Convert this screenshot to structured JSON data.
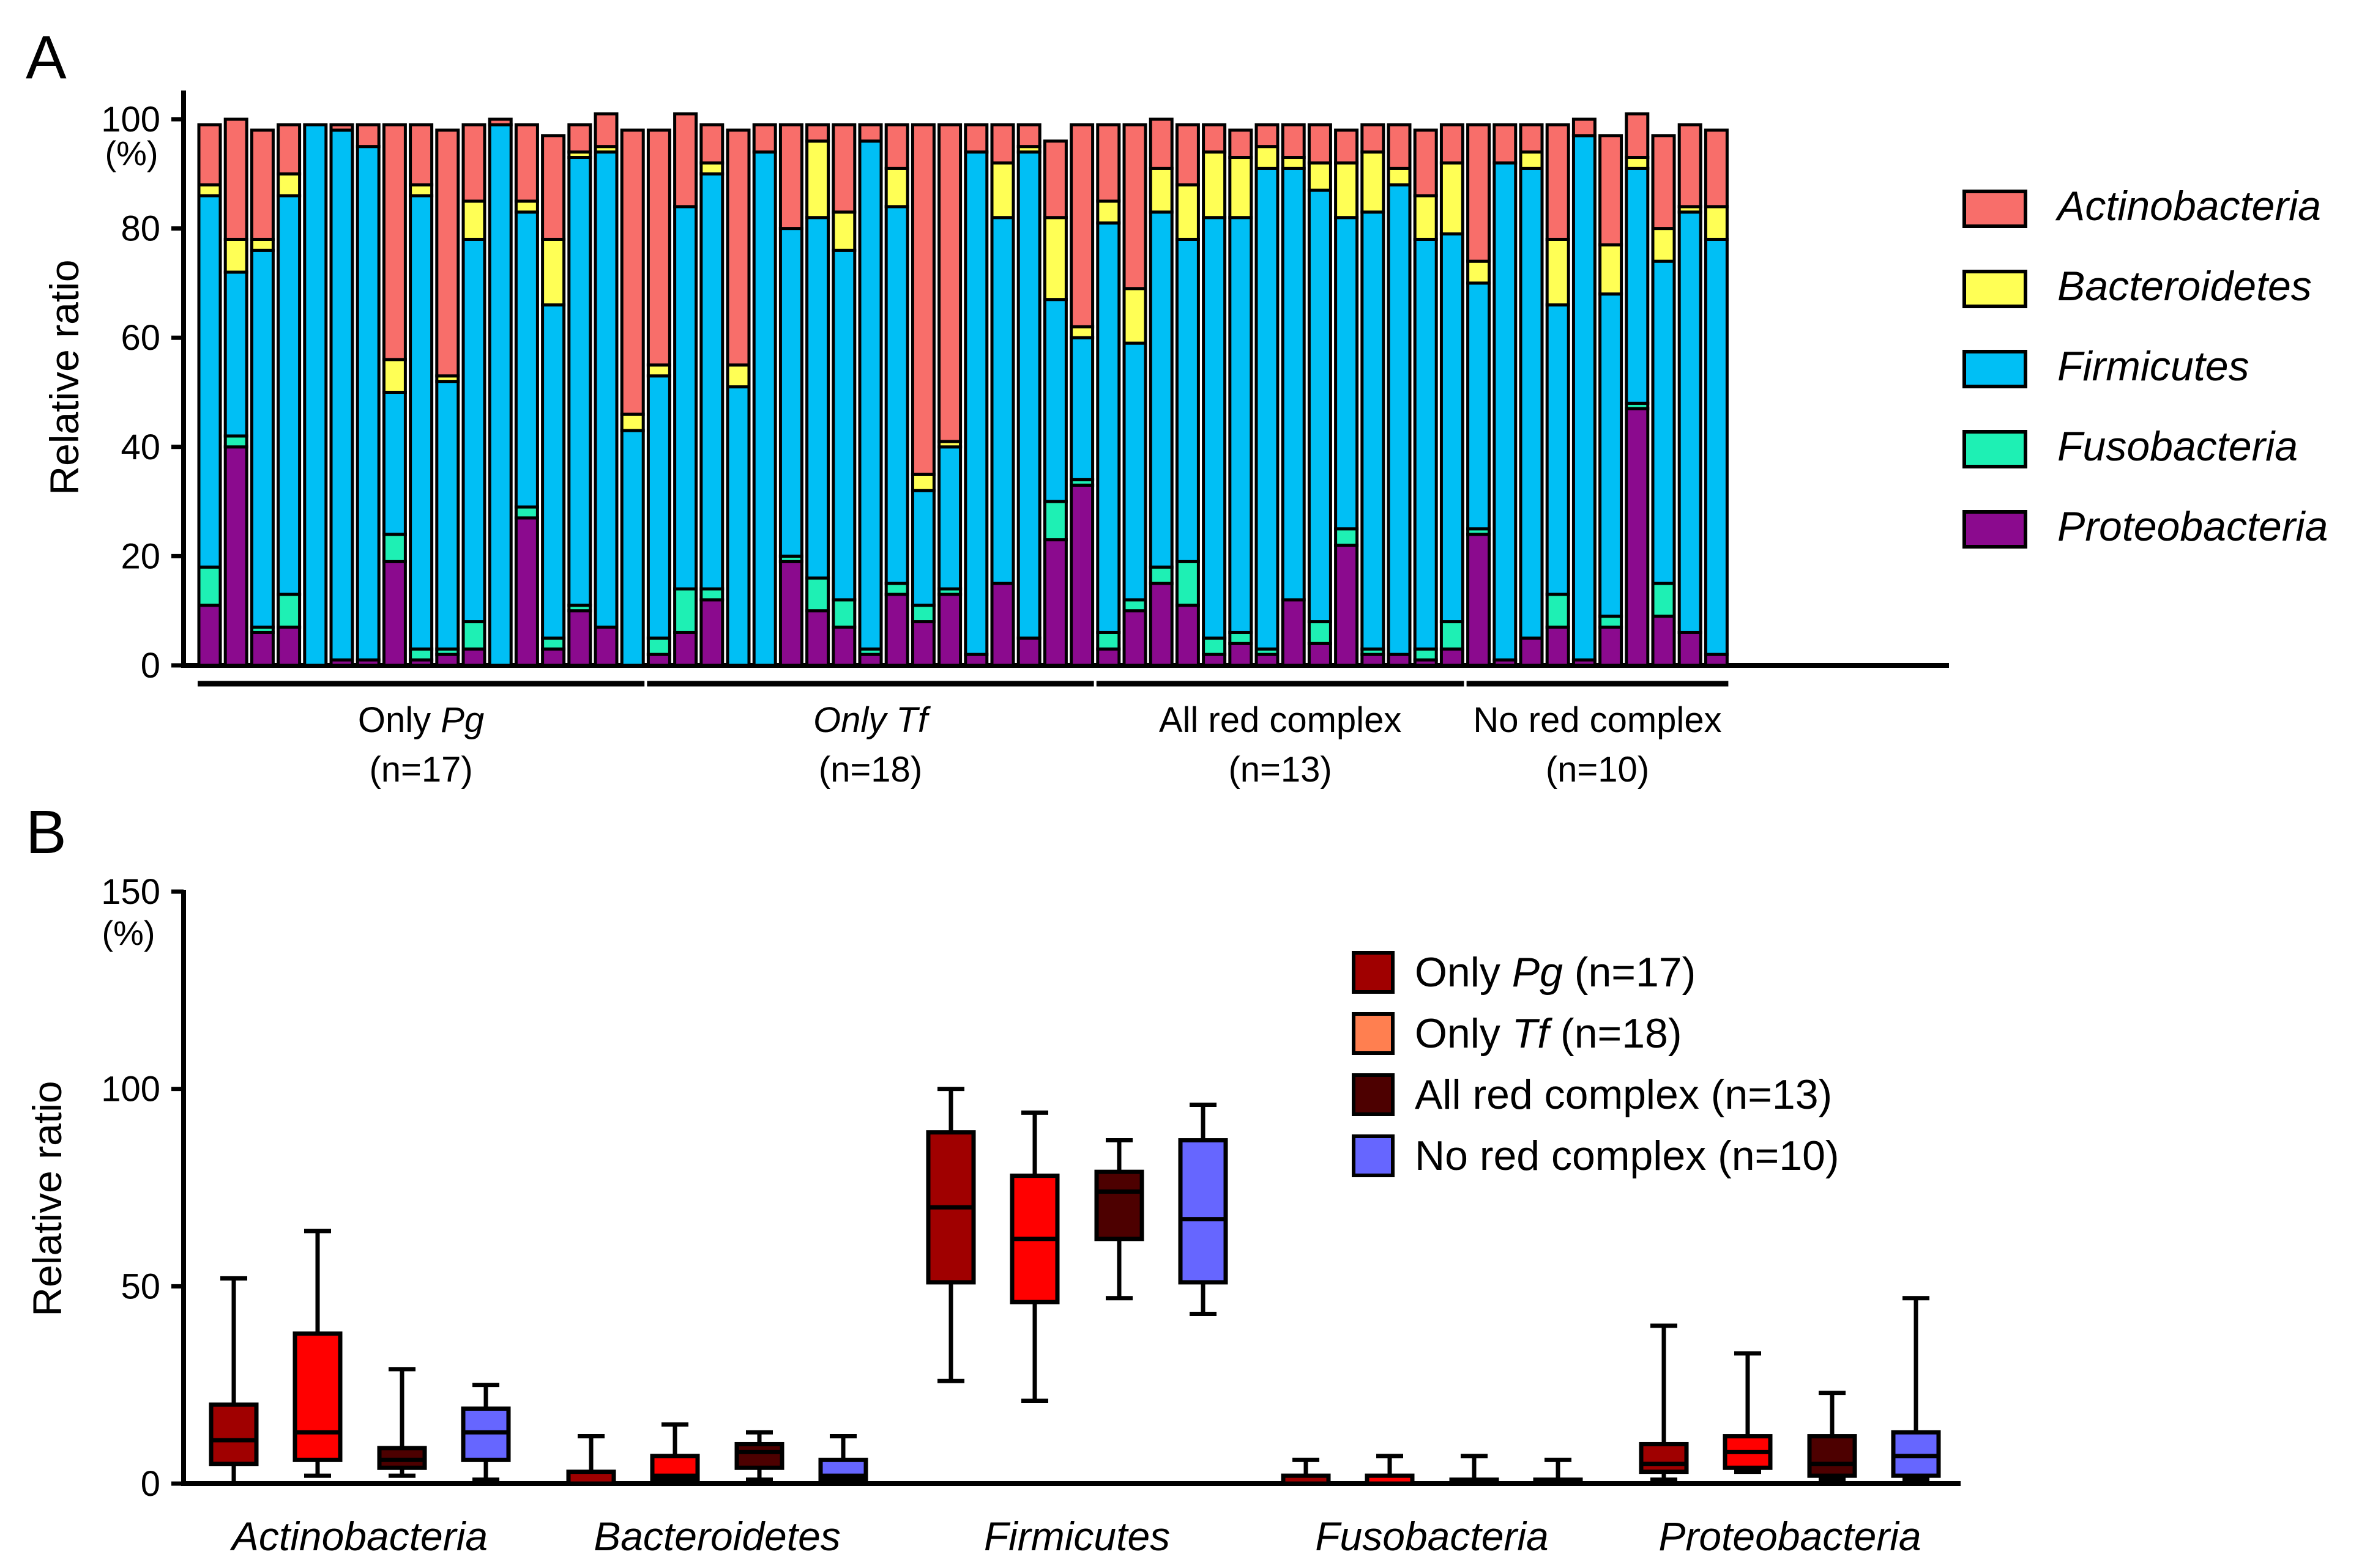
{
  "figure": {
    "panel_a_label": "A",
    "panel_b_label": "B"
  },
  "chart_data": [
    {
      "type": "bar",
      "stacked": true,
      "panel": "A",
      "ylabel": "Relative ratio",
      "yunit": "(%)",
      "ylim": [
        0,
        100
      ],
      "yticks": [
        0,
        20,
        40,
        60,
        80,
        100
      ],
      "legend_position": "right",
      "phyla": [
        "Actinobacteria",
        "Bacteroidetes",
        "Firmicutes",
        "Fusobacteria",
        "Proteobacteria"
      ],
      "colors": {
        "Proteobacteria": "#8B0A8E",
        "Fusobacteria": "#1EF0B4",
        "Firmicutes": "#00BFF5",
        "Bacteroidetes": "#FFFF55",
        "Actinobacteria": "#F86E6A"
      },
      "groups": [
        {
          "label_main": "Only ",
          "label_ital": "Pg",
          "label_n": "(n=17)",
          "italic_all": false
        },
        {
          "label_main": "",
          "label_ital": "Only Tf",
          "label_n": "(n=18)",
          "italic_all": true
        },
        {
          "label_main": "All red complex",
          "label_ital": "",
          "label_n": "(n=13)",
          "italic_all": false
        },
        {
          "label_main": "No red complex",
          "label_ital": "",
          "label_n": "(n=10)",
          "italic_all": false
        }
      ],
      "samples": [
        {
          "group": 0,
          "segments": [
            11,
            7,
            68,
            2,
            11
          ]
        },
        {
          "group": 0,
          "segments": [
            40,
            2,
            30,
            6,
            22
          ]
        },
        {
          "group": 0,
          "segments": [
            6,
            1,
            69,
            2,
            20
          ]
        },
        {
          "group": 0,
          "segments": [
            7,
            6,
            73,
            4,
            9
          ]
        },
        {
          "group": 0,
          "segments": [
            0,
            0,
            99,
            0,
            0
          ]
        },
        {
          "group": 0,
          "segments": [
            1,
            0,
            97,
            0,
            1
          ]
        },
        {
          "group": 0,
          "segments": [
            1,
            0,
            94,
            0,
            4
          ]
        },
        {
          "group": 0,
          "segments": [
            19,
            5,
            26,
            6,
            43
          ]
        },
        {
          "group": 0,
          "segments": [
            1,
            2,
            83,
            2,
            11
          ]
        },
        {
          "group": 0,
          "segments": [
            2,
            1,
            49,
            1,
            45
          ]
        },
        {
          "group": 0,
          "segments": [
            3,
            5,
            70,
            7,
            14
          ]
        },
        {
          "group": 0,
          "segments": [
            0,
            0,
            99,
            0,
            1
          ]
        },
        {
          "group": 0,
          "segments": [
            27,
            2,
            54,
            2,
            14
          ]
        },
        {
          "group": 0,
          "segments": [
            3,
            2,
            61,
            12,
            19
          ]
        },
        {
          "group": 0,
          "segments": [
            10,
            1,
            82,
            1,
            5
          ]
        },
        {
          "group": 0,
          "segments": [
            7,
            0,
            87,
            1,
            6
          ]
        },
        {
          "group": 0,
          "segments": [
            0,
            0,
            43,
            3,
            52
          ]
        },
        {
          "group": 1,
          "segments": [
            2,
            3,
            48,
            2,
            43
          ]
        },
        {
          "group": 1,
          "segments": [
            6,
            8,
            70,
            0,
            17
          ]
        },
        {
          "group": 1,
          "segments": [
            12,
            2,
            76,
            2,
            7
          ]
        },
        {
          "group": 1,
          "segments": [
            0,
            0,
            51,
            4,
            43
          ]
        },
        {
          "group": 1,
          "segments": [
            0,
            0,
            94,
            0,
            5
          ]
        },
        {
          "group": 1,
          "segments": [
            19,
            1,
            60,
            0,
            19
          ]
        },
        {
          "group": 1,
          "segments": [
            10,
            6,
            66,
            14,
            3
          ]
        },
        {
          "group": 1,
          "segments": [
            7,
            5,
            64,
            7,
            16
          ]
        },
        {
          "group": 1,
          "segments": [
            2,
            1,
            93,
            0,
            3
          ]
        },
        {
          "group": 1,
          "segments": [
            13,
            2,
            69,
            7,
            8
          ]
        },
        {
          "group": 1,
          "segments": [
            8,
            3,
            21,
            3,
            64
          ]
        },
        {
          "group": 1,
          "segments": [
            13,
            1,
            26,
            1,
            58
          ]
        },
        {
          "group": 1,
          "segments": [
            2,
            0,
            92,
            0,
            5
          ]
        },
        {
          "group": 1,
          "segments": [
            15,
            0,
            67,
            10,
            7
          ]
        },
        {
          "group": 1,
          "segments": [
            5,
            0,
            89,
            1,
            4
          ]
        },
        {
          "group": 1,
          "segments": [
            23,
            7,
            37,
            15,
            14
          ]
        },
        {
          "group": 1,
          "segments": [
            33,
            1,
            26,
            2,
            37
          ]
        },
        {
          "group": 2,
          "segments": [
            3,
            3,
            75,
            4,
            14
          ]
        },
        {
          "group": 2,
          "segments": [
            10,
            2,
            47,
            10,
            30
          ]
        },
        {
          "group": 2,
          "segments": [
            15,
            3,
            65,
            8,
            9
          ]
        },
        {
          "group": 2,
          "segments": [
            11,
            8,
            59,
            10,
            11
          ]
        },
        {
          "group": 2,
          "segments": [
            2,
            3,
            77,
            12,
            5
          ]
        },
        {
          "group": 2,
          "segments": [
            4,
            2,
            76,
            11,
            5
          ]
        },
        {
          "group": 2,
          "segments": [
            2,
            1,
            88,
            4,
            4
          ]
        },
        {
          "group": 2,
          "segments": [
            12,
            0,
            79,
            2,
            6
          ]
        },
        {
          "group": 2,
          "segments": [
            4,
            4,
            79,
            5,
            7
          ]
        },
        {
          "group": 2,
          "segments": [
            22,
            3,
            57,
            10,
            6
          ]
        },
        {
          "group": 2,
          "segments": [
            2,
            1,
            80,
            11,
            5
          ]
        },
        {
          "group": 2,
          "segments": [
            2,
            0,
            86,
            3,
            8
          ]
        },
        {
          "group": 2,
          "segments": [
            1,
            2,
            75,
            8,
            12
          ]
        },
        {
          "group": 2,
          "segments": [
            3,
            5,
            71,
            13,
            7
          ]
        },
        {
          "group": 3,
          "segments": [
            24,
            1,
            45,
            4,
            25
          ]
        },
        {
          "group": 3,
          "segments": [
            1,
            0,
            91,
            0,
            7
          ]
        },
        {
          "group": 3,
          "segments": [
            5,
            0,
            86,
            3,
            5
          ]
        },
        {
          "group": 3,
          "segments": [
            7,
            6,
            53,
            12,
            21
          ]
        },
        {
          "group": 3,
          "segments": [
            1,
            0,
            96,
            0,
            3
          ]
        },
        {
          "group": 3,
          "segments": [
            7,
            2,
            59,
            9,
            20
          ]
        },
        {
          "group": 3,
          "segments": [
            47,
            1,
            43,
            2,
            8
          ]
        },
        {
          "group": 3,
          "segments": [
            9,
            6,
            59,
            6,
            17
          ]
        },
        {
          "group": 3,
          "segments": [
            6,
            0,
            77,
            1,
            15
          ]
        },
        {
          "group": 3,
          "segments": [
            2,
            0,
            76,
            6,
            14
          ]
        }
      ]
    },
    {
      "type": "boxplot",
      "panel": "B",
      "ylabel": "Relative ratio",
      "yunit": "(%)",
      "ylim": [
        0,
        150
      ],
      "yticks": [
        0,
        50,
        100,
        150
      ],
      "legend_position": "top-right",
      "categories": [
        "Actinobacteria",
        "Bacteroidetes",
        "Firmicutes",
        "Fusobacteria",
        "Proteobacteria"
      ],
      "series": [
        {
          "name_main": "Only ",
          "name_ital": "Pg",
          "name_tail": " (n=17)",
          "legend_color": "#A00000",
          "box_color": "#A00000",
          "stats": [
            [
              0,
              5,
              11,
              20,
              52
            ],
            [
              0,
              0,
              0,
              3,
              12
            ],
            [
              26,
              51,
              70,
              89,
              100
            ],
            [
              0,
              0,
              0,
              2,
              6
            ],
            [
              1,
              3,
              5,
              10,
              40
            ]
          ]
        },
        {
          "name_main": "Only ",
          "name_ital": "Tf",
          "name_tail": " (n=18)",
          "legend_color": "#FF7F50",
          "box_color": "#FF0000",
          "stats": [
            [
              2,
              6,
              13,
              38,
              64
            ],
            [
              0,
              1,
              2,
              7,
              15
            ],
            [
              21,
              46,
              62,
              78,
              94
            ],
            [
              0,
              0,
              0,
              2,
              7
            ],
            [
              3,
              4,
              8,
              12,
              33
            ]
          ]
        },
        {
          "name_main": "All red complex (n=13)",
          "name_ital": "",
          "name_tail": "",
          "legend_color": "#4D0000",
          "box_color": "#4D0000",
          "stats": [
            [
              2,
              4,
              6,
              9,
              29
            ],
            [
              1,
              4,
              8,
              10,
              13
            ],
            [
              47,
              62,
              74,
              79,
              87
            ],
            [
              0,
              0,
              0,
              1,
              7
            ],
            [
              1,
              2,
              5,
              12,
              23
            ]
          ]
        },
        {
          "name_main": "No red complex (n=10)",
          "name_ital": "",
          "name_tail": "",
          "legend_color": "#6666FF",
          "box_color": "#6666FF",
          "stats": [
            [
              1,
              6,
              13,
              19,
              25
            ],
            [
              0,
              1,
              2,
              6,
              12
            ],
            [
              43,
              51,
              67,
              87,
              96
            ],
            [
              0,
              0,
              0,
              1,
              6
            ],
            [
              1,
              2,
              7,
              13,
              47
            ]
          ]
        }
      ]
    }
  ]
}
